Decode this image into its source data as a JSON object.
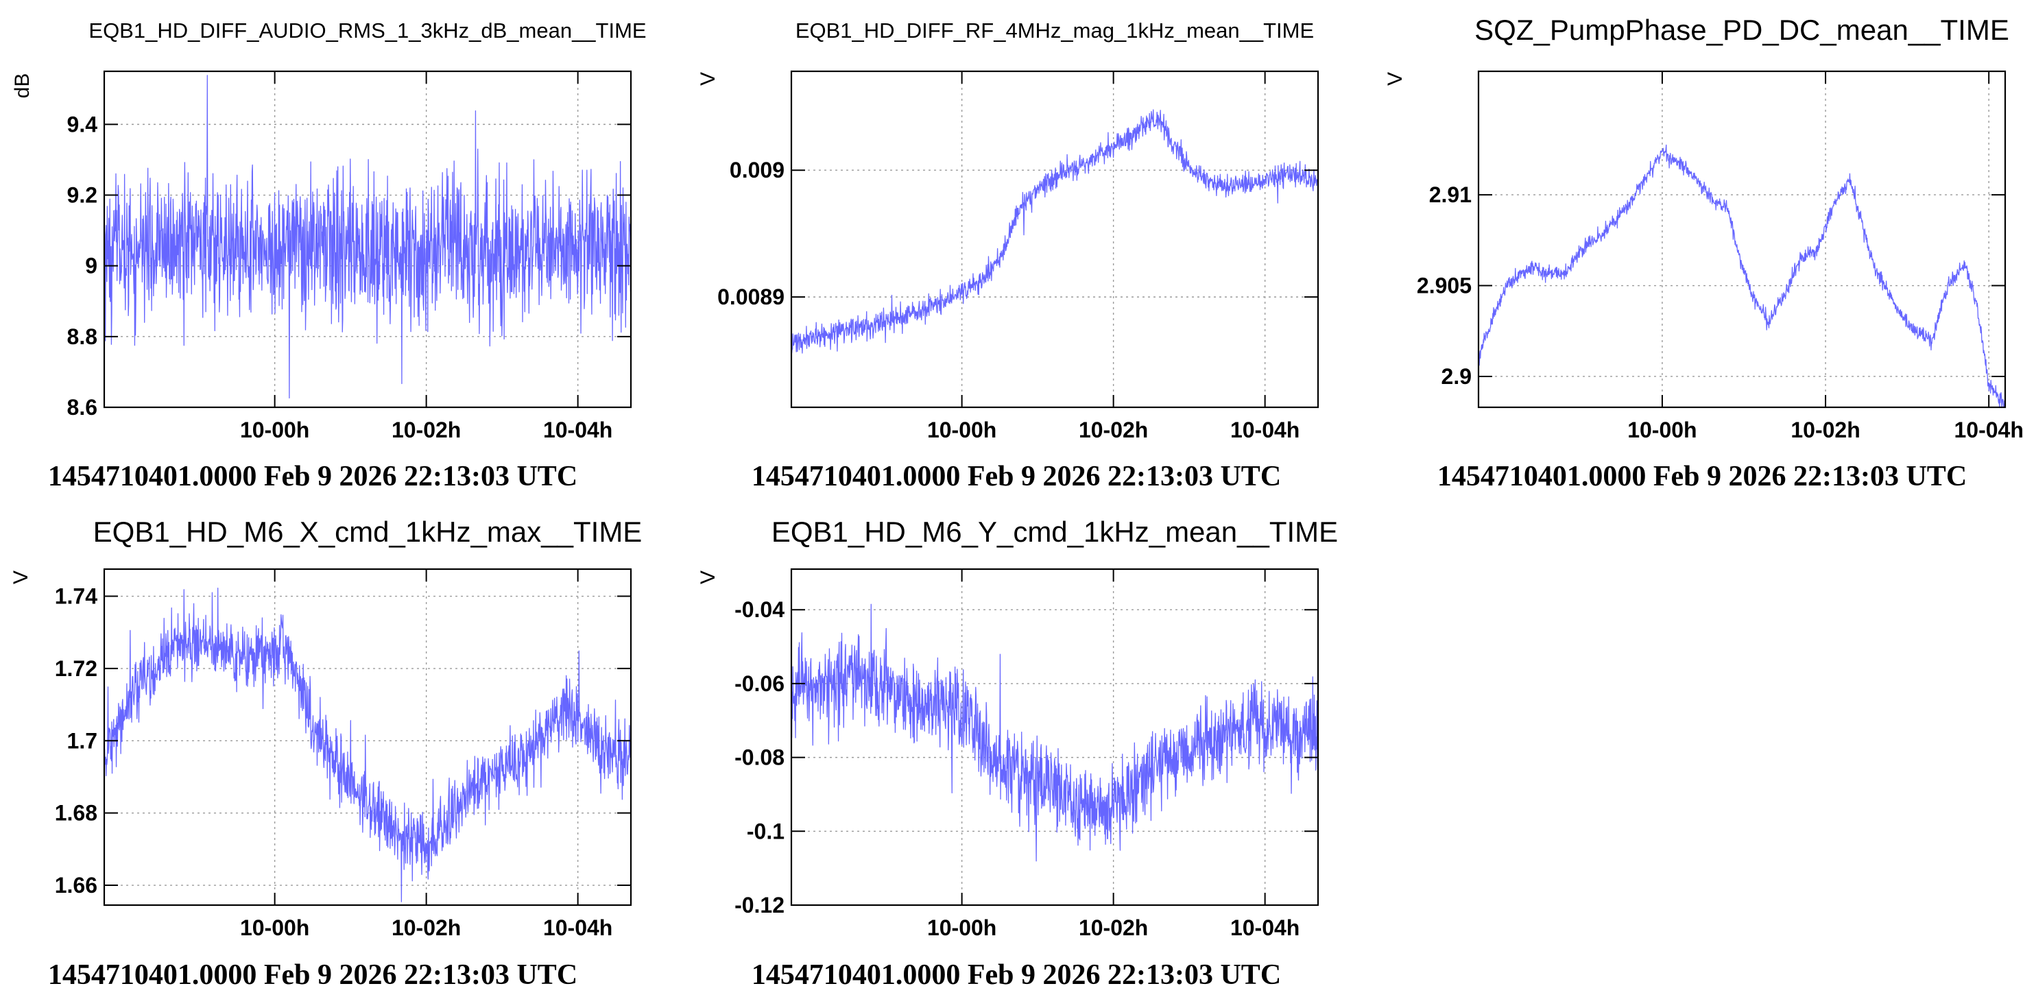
{
  "page": {
    "title": "",
    "line_color": "#6666ff"
  },
  "chart_data": [
    {
      "type": "line",
      "title": "EQB1_HD_DIFF_AUDIO_RMS_1_3kHz_dB_mean__TIME",
      "ylabel": "dB",
      "xlabel": "1454710401.0000 Feb 9 2026 22:13:03 UTC",
      "x_ticks": [
        "10-00h",
        "10-02h",
        "10-04h"
      ],
      "x_tick_values": [
        2.0,
        4.0,
        6.0
      ],
      "xlim": [
        -0.25,
        6.7
      ],
      "y_ticks": [
        "8.6",
        "8.8",
        "9",
        "9.2",
        "9.4"
      ],
      "y_tick_values": [
        8.6,
        8.8,
        9.0,
        9.2,
        9.4
      ],
      "ylim": [
        8.6,
        9.55
      ],
      "grid": true,
      "noise": 0.1,
      "series": [
        {
          "color": "#6666ff",
          "x": [
            -0.25,
            0.5,
            1.0,
            1.5,
            2.0,
            2.5,
            3.0,
            3.5,
            4.0,
            4.5,
            5.0,
            5.5,
            6.0,
            6.7
          ],
          "y": [
            9.05,
            9.05,
            9.05,
            9.05,
            9.05,
            9.05,
            9.05,
            9.05,
            9.05,
            9.05,
            9.05,
            9.05,
            9.05,
            9.05
          ]
        }
      ]
    },
    {
      "type": "line",
      "title": "EQB1_HD_DIFF_RF_4MHz_mag_1kHz_mean__TIME",
      "ylabel": "V",
      "xlabel": "1454710401.0000 Feb 9 2026 22:13:03 UTC",
      "x_ticks": [
        "10-00h",
        "10-02h",
        "10-04h"
      ],
      "x_tick_values": [
        2.0,
        4.0,
        6.0
      ],
      "xlim": [
        -0.25,
        6.7
      ],
      "y_ticks": [
        "0.0089",
        "0.009"
      ],
      "y_tick_values": [
        0.0089,
        0.009
      ],
      "ylim": [
        0.008813,
        0.009078
      ],
      "grid": true,
      "noise": 4.5e-06,
      "series": [
        {
          "color": "#6666ff",
          "x": [
            -0.25,
            0.2,
            0.6,
            1.0,
            1.4,
            1.8,
            2.2,
            2.5,
            2.8,
            3.1,
            3.4,
            3.7,
            4.0,
            4.3,
            4.6,
            4.8,
            5.0,
            5.2,
            5.5,
            5.8,
            6.1,
            6.4,
            6.7
          ],
          "y": [
            0.008863,
            0.00887,
            0.008875,
            0.00888,
            0.008888,
            0.008898,
            0.00891,
            0.00893,
            0.008975,
            0.00899,
            0.009,
            0.009008,
            0.009018,
            0.00903,
            0.009042,
            0.00902,
            0.009003,
            0.008992,
            0.008987,
            0.008989,
            0.008995,
            0.008997,
            0.00899
          ]
        }
      ]
    },
    {
      "type": "line",
      "title": "SQZ_PumpPhase_PD_DC_mean__TIME",
      "ylabel": "V",
      "xlabel": "1454710401.0000 Feb 9 2026 22:13:03 UTC",
      "x_ticks": [
        "10-00h",
        "10-02h",
        "10-04h"
      ],
      "x_tick_values": [
        2.0,
        4.0,
        6.0
      ],
      "xlim": [
        -0.25,
        6.2
      ],
      "y_ticks": [
        "2.9",
        "2.905",
        "2.91"
      ],
      "y_tick_values": [
        2.9,
        2.905,
        2.91
      ],
      "ylim": [
        2.8983,
        2.9168
      ],
      "grid": true,
      "noise": 0.0002,
      "series": [
        {
          "color": "#6666ff",
          "x": [
            -0.25,
            -0.1,
            0.1,
            0.4,
            0.8,
            1.0,
            1.3,
            1.6,
            1.8,
            2.0,
            2.3,
            2.6,
            2.8,
            2.95,
            3.1,
            3.3,
            3.5,
            3.7,
            3.9,
            4.1,
            4.3,
            4.6,
            4.9,
            5.1,
            5.3,
            5.5,
            5.7,
            5.85,
            6.0,
            6.2
          ],
          "y": [
            2.9012,
            2.903,
            2.905,
            2.906,
            2.9055,
            2.907,
            2.908,
            2.9095,
            2.911,
            2.9123,
            2.9115,
            2.9098,
            2.9092,
            2.9065,
            2.9045,
            2.903,
            2.9045,
            2.9065,
            2.907,
            2.9095,
            2.9108,
            2.906,
            2.9035,
            2.9025,
            2.902,
            2.905,
            2.9062,
            2.904,
            2.8995,
            2.8985
          ]
        }
      ]
    },
    {
      "type": "line",
      "title": "EQB1_HD_M6_X_cmd_1kHz_max__TIME",
      "ylabel": "V",
      "xlabel": "1454710401.0000 Feb 9 2026 22:13:03 UTC",
      "x_ticks": [
        "10-00h",
        "10-02h",
        "10-04h"
      ],
      "x_tick_values": [
        2.0,
        4.0,
        6.0
      ],
      "xlim": [
        -0.25,
        6.7
      ],
      "y_ticks": [
        "1.66",
        "1.68",
        "1.7",
        "1.72",
        "1.74"
      ],
      "y_tick_values": [
        1.66,
        1.68,
        1.7,
        1.72,
        1.74
      ],
      "ylim": [
        1.6545,
        1.7475
      ],
      "grid": true,
      "noise": 0.0045,
      "series": [
        {
          "color": "#6666ff",
          "x": [
            -0.25,
            0.1,
            0.5,
            0.9,
            1.3,
            1.6,
            1.9,
            2.1,
            2.3,
            2.5,
            2.8,
            3.1,
            3.4,
            3.7,
            4.0,
            4.3,
            4.6,
            5.0,
            5.3,
            5.6,
            5.8,
            6.0,
            6.3,
            6.7
          ],
          "y": [
            1.696,
            1.712,
            1.723,
            1.728,
            1.726,
            1.722,
            1.724,
            1.727,
            1.718,
            1.705,
            1.694,
            1.686,
            1.68,
            1.673,
            1.672,
            1.678,
            1.686,
            1.693,
            1.696,
            1.704,
            1.708,
            1.706,
            1.699,
            1.694
          ]
        }
      ]
    },
    {
      "type": "line",
      "title": "EQB1_HD_M6_Y_cmd_1kHz_mean__TIME",
      "ylabel": "V",
      "xlabel": "1454710401.0000 Feb 9 2026 22:13:03 UTC",
      "x_ticks": [
        "10-00h",
        "10-02h",
        "10-04h"
      ],
      "x_tick_values": [
        2.0,
        4.0,
        6.0
      ],
      "xlim": [
        -0.25,
        6.7
      ],
      "y_ticks": [
        "-0.12",
        "-0.1",
        "-0.08",
        "-0.06",
        "-0.04"
      ],
      "y_tick_values": [
        -0.12,
        -0.1,
        -0.08,
        -0.06,
        -0.04
      ],
      "ylim": [
        -0.12,
        -0.029
      ],
      "grid": true,
      "noise": 0.0055,
      "series": [
        {
          "color": "#6666ff",
          "x": [
            -0.25,
            0.2,
            0.6,
            1.0,
            1.4,
            1.8,
            2.1,
            2.4,
            2.7,
            3.0,
            3.3,
            3.6,
            3.9,
            4.2,
            4.5,
            4.8,
            5.1,
            5.4,
            5.7,
            6.0,
            6.3,
            6.7
          ],
          "y": [
            -0.062,
            -0.06,
            -0.058,
            -0.062,
            -0.066,
            -0.064,
            -0.07,
            -0.08,
            -0.084,
            -0.086,
            -0.09,
            -0.094,
            -0.093,
            -0.09,
            -0.084,
            -0.08,
            -0.078,
            -0.075,
            -0.072,
            -0.07,
            -0.073,
            -0.075
          ]
        }
      ]
    }
  ]
}
